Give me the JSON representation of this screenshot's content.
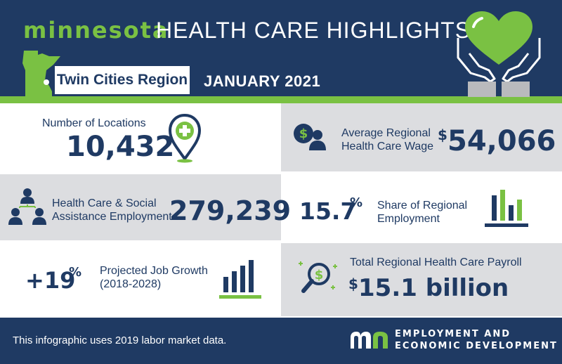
{
  "header": {
    "brand": "minnesota",
    "title": "HEALTH CARE HIGHLIGHTS",
    "region": "Twin Cities Region",
    "month": "JANUARY 2021"
  },
  "stats": {
    "locations": {
      "label": "Number of Locations",
      "value": "10,432"
    },
    "avg_wage": {
      "label_line1": "Average Regional",
      "label_line2": "Health Care Wage",
      "currency": "$",
      "value": "54,066"
    },
    "employment": {
      "label_line1": "Health Care & Social",
      "label_line2": "Assistance Employment",
      "value": "279,239"
    },
    "share": {
      "value": "15.7",
      "unit": "%",
      "label_line1": "Share of Regional",
      "label_line2": "Employment"
    },
    "growth": {
      "value": "+19",
      "unit": "%",
      "label_line1": "Projected Job Growth",
      "label_line2": "(2018-2028)"
    },
    "payroll": {
      "label": "Total Regional Health Care Payroll",
      "currency": "$",
      "value": "15.1 billion"
    }
  },
  "footer": {
    "note": "This infographic uses 2019 labor market data.",
    "org_line1": "EMPLOYMENT AND",
    "org_line2": "ECONOMIC DEVELOPMENT"
  },
  "colors": {
    "navy": "#1f3a63",
    "green": "#7ac143",
    "grey_panel": "#dcdde0",
    "white": "#ffffff"
  },
  "icons": [
    "minnesota-state-icon",
    "heart-hands-icon",
    "location-pin-plus-icon",
    "dollar-person-icon",
    "people-hierarchy-icon",
    "bar-chart-icon",
    "growth-bars-icon",
    "dollar-magnifier-icon",
    "mn-logo-icon"
  ]
}
